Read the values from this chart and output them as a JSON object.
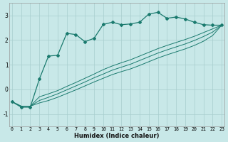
{
  "xlabel": "Humidex (Indice chaleur)",
  "bg_color": "#c8e8e8",
  "grid_color": "#a8cece",
  "line_color": "#1a7a6e",
  "xlim_min": -0.3,
  "xlim_max": 23.3,
  "ylim_min": -1.5,
  "ylim_max": 3.5,
  "yticks": [
    -1,
    0,
    1,
    2,
    3
  ],
  "xticks": [
    0,
    1,
    2,
    3,
    4,
    5,
    6,
    7,
    8,
    9,
    10,
    11,
    12,
    13,
    14,
    15,
    16,
    17,
    18,
    19,
    20,
    21,
    22,
    23
  ],
  "main_x": [
    0,
    1,
    2,
    3,
    4,
    5,
    6,
    7,
    8,
    9,
    10,
    11,
    12,
    13,
    14,
    15,
    16,
    17,
    18,
    19,
    20,
    21,
    22,
    23
  ],
  "main_y": [
    -0.5,
    -0.72,
    -0.72,
    0.42,
    1.35,
    1.38,
    2.27,
    2.22,
    1.93,
    2.07,
    2.63,
    2.72,
    2.62,
    2.65,
    2.72,
    3.05,
    3.12,
    2.88,
    2.93,
    2.85,
    2.72,
    2.62,
    2.6,
    2.6
  ],
  "line2_x": [
    0,
    1,
    2,
    3,
    4,
    5,
    6,
    7,
    8,
    9,
    10,
    11,
    12,
    13,
    14,
    15,
    16,
    17,
    18,
    19,
    20,
    21,
    22,
    23
  ],
  "line2_y": [
    -0.5,
    -0.68,
    -0.68,
    -0.3,
    -0.18,
    -0.05,
    0.12,
    0.28,
    0.45,
    0.62,
    0.8,
    0.95,
    1.08,
    1.2,
    1.35,
    1.5,
    1.65,
    1.78,
    1.9,
    2.02,
    2.15,
    2.3,
    2.45,
    2.6
  ],
  "line3_x": [
    0,
    1,
    2,
    3,
    4,
    5,
    6,
    7,
    8,
    9,
    10,
    11,
    12,
    13,
    14,
    15,
    16,
    17,
    18,
    19,
    20,
    21,
    22,
    23
  ],
  "line3_y": [
    -0.5,
    -0.68,
    -0.68,
    -0.45,
    -0.32,
    -0.18,
    -0.02,
    0.14,
    0.3,
    0.47,
    0.62,
    0.78,
    0.9,
    1.02,
    1.17,
    1.32,
    1.47,
    1.6,
    1.72,
    1.84,
    1.98,
    2.14,
    2.32,
    2.6
  ],
  "line4_x": [
    0,
    1,
    2,
    3,
    4,
    5,
    6,
    7,
    8,
    9,
    10,
    11,
    12,
    13,
    14,
    15,
    16,
    17,
    18,
    19,
    20,
    21,
    22,
    23
  ],
  "line4_y": [
    -0.5,
    -0.68,
    -0.68,
    -0.55,
    -0.45,
    -0.32,
    -0.17,
    -0.02,
    0.14,
    0.3,
    0.45,
    0.6,
    0.72,
    0.83,
    0.97,
    1.12,
    1.27,
    1.4,
    1.52,
    1.64,
    1.78,
    1.95,
    2.18,
    2.6
  ]
}
